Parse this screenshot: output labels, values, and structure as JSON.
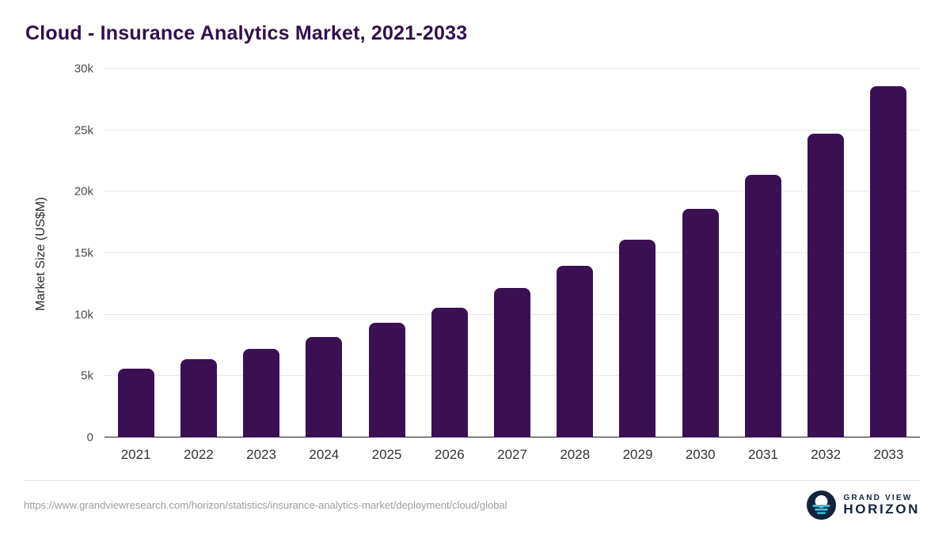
{
  "title": "Cloud - Insurance Analytics Market, 2021-2033",
  "source_url": "https://www.grandviewresearch.com/horizon/statistics/insurance-analytics-market/deployment/cloud/global",
  "logo": {
    "line1": "GRAND VIEW",
    "line2": "HORIZON"
  },
  "colors": {
    "bar": "#3b1053",
    "title": "#31104e",
    "grid": "#e8e8e8",
    "axis_line": "#1a1a1a",
    "logo_accent": "#35c4d7",
    "logo_dark": "#14233c"
  },
  "chart_data": {
    "type": "bar",
    "title": "Cloud - Insurance Analytics Market, 2021-2033",
    "categories": [
      "2021",
      "2022",
      "2023",
      "2024",
      "2025",
      "2026",
      "2027",
      "2028",
      "2029",
      "2030",
      "2031",
      "2032",
      "2033"
    ],
    "values": [
      5600,
      6350,
      7200,
      8150,
      9350,
      10550,
      12150,
      14000,
      16100,
      18600,
      21400,
      24750,
      28600
    ],
    "xlabel": "",
    "ylabel": "Market Size (US$M)",
    "ylim": [
      0,
      30000
    ],
    "yticks": [
      "0",
      "5k",
      "10k",
      "15k",
      "20k",
      "25k",
      "30k"
    ],
    "grid": true,
    "legend": false,
    "bar_color": "#3b1053"
  }
}
